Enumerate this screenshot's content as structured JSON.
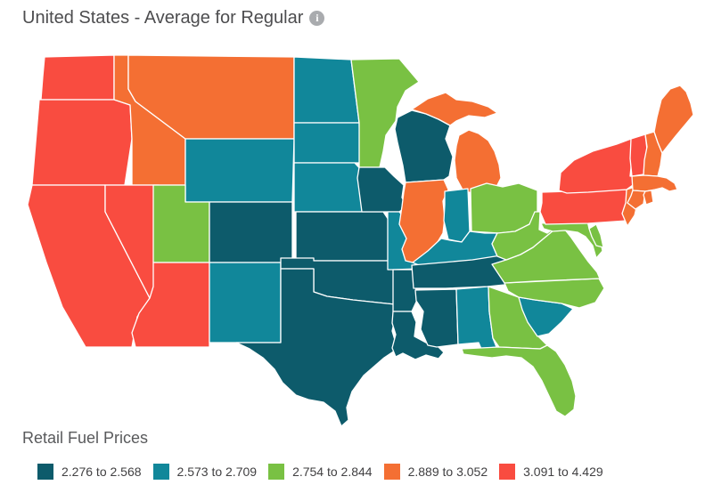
{
  "title": "United States - Average for Regular",
  "info_icon": "i",
  "legend": {
    "title": "Retail Fuel Prices",
    "classes": [
      {
        "label": "2.276 to 2.568",
        "color": "#0d5b6b"
      },
      {
        "label": "2.573 to 2.709",
        "color": "#11879a"
      },
      {
        "label": "2.754 to 2.844",
        "color": "#79c143"
      },
      {
        "label": "2.889 to 3.052",
        "color": "#f46f33"
      },
      {
        "label": "3.091 to 4.429",
        "color": "#f94c40"
      }
    ]
  },
  "chart_data": {
    "type": "choropleth_map",
    "title": "United States - Average for Regular",
    "legend_title": "Retail Fuel Prices",
    "legend_position": "bottom",
    "classes": [
      {
        "range": "2.276 to 2.568",
        "min": 2.276,
        "max": 2.568,
        "color": "#0d5b6b"
      },
      {
        "range": "2.573 to 2.709",
        "min": 2.573,
        "max": 2.709,
        "color": "#11879a"
      },
      {
        "range": "2.754 to 2.844",
        "min": 2.754,
        "max": 2.844,
        "color": "#79c143"
      },
      {
        "range": "2.889 to 3.052",
        "min": 2.889,
        "max": 3.052,
        "color": "#f46f33"
      },
      {
        "range": "3.091 to 4.429",
        "min": 3.091,
        "max": 4.429,
        "color": "#f94c40"
      }
    ],
    "states": {
      "WA": 5,
      "OR": 5,
      "CA": 5,
      "NV": 5,
      "AZ": 5,
      "ID": 4,
      "MT": 4,
      "WY": 2,
      "UT": 3,
      "CO": 1,
      "NM": 2,
      "ND": 2,
      "SD": 2,
      "NE": 2,
      "KS": 1,
      "OK": 1,
      "TX": 1,
      "MN": 3,
      "IA": 1,
      "MO": 2,
      "AR": 1,
      "LA": 1,
      "WI": 1,
      "IL": 4,
      "MI": 4,
      "IN": 2,
      "OH": 3,
      "KY": 2,
      "TN": 1,
      "MS": 1,
      "AL": 2,
      "GA": 3,
      "FL": 3,
      "SC": 2,
      "NC": 3,
      "VA": 3,
      "WV": 3,
      "MD": 3,
      "DE": 3,
      "PA": 5,
      "NJ": 4,
      "NY": 5,
      "VT": 5,
      "NH": 4,
      "ME": 4,
      "MA": 4,
      "CT": 4,
      "RI": 4
    }
  }
}
